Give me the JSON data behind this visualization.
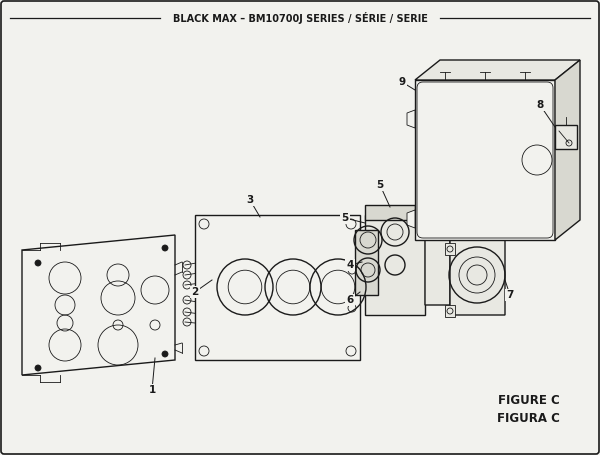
{
  "title": "BLACK MAX – BM10700J SERIES / SÉRIE / SERIE",
  "figure_label": "FIGURE C",
  "figura_label": "FIGURA C",
  "bg_color": "#f2f2ee",
  "line_color": "#1a1a1a",
  "gray_fill": "#d8d8d0",
  "light_fill": "#e8e8e2"
}
